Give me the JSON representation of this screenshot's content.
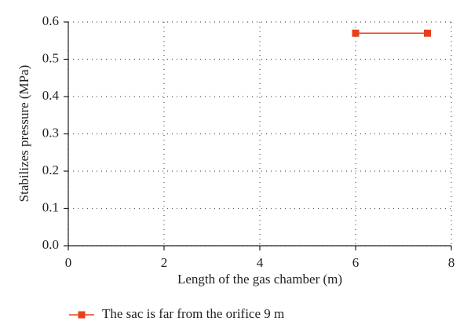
{
  "chart_data": {
    "type": "line",
    "x_label": "Length of the gas chamber (m)",
    "y_label": "Stabilizes pressure (MPa)",
    "x": [
      6,
      7.5
    ],
    "series": [
      {
        "name": "The sac is far from the orifice 9 m",
        "color": "#e8401c",
        "values": [
          0.57,
          0.57
        ]
      }
    ],
    "xlim": [
      0,
      8
    ],
    "xticks": [
      0,
      2,
      4,
      6,
      8
    ],
    "ylim": [
      0,
      0.6
    ],
    "yticks": [
      {
        "value": 0,
        "label": "0.0"
      },
      0.1,
      0.2,
      0.3,
      0.4,
      0.5,
      0.6
    ],
    "grid": true,
    "legend": "bottom"
  }
}
